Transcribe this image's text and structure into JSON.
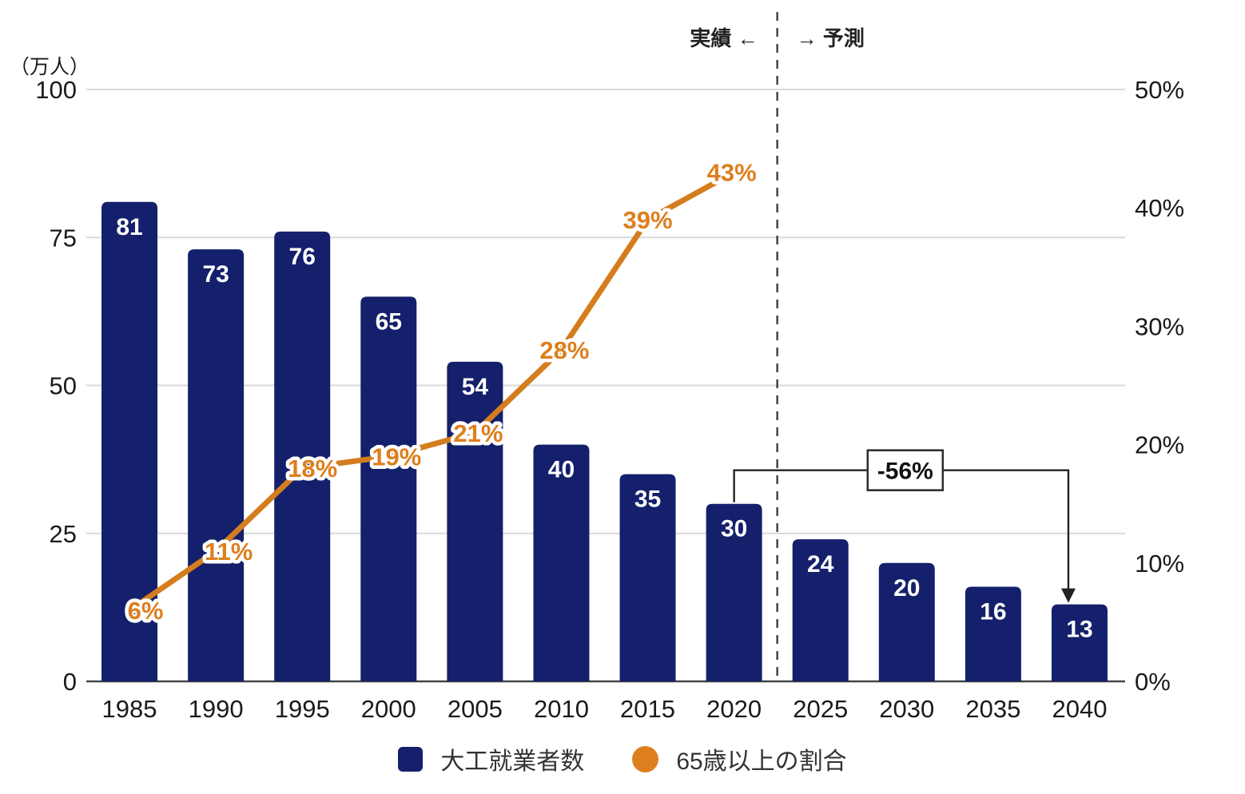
{
  "chart_data": {
    "type": "bar+line",
    "categories": [
      "1985",
      "1990",
      "1995",
      "2000",
      "2005",
      "2010",
      "2015",
      "2020",
      "2025",
      "2030",
      "2035",
      "2040"
    ],
    "series": [
      {
        "name": "大工就業者数",
        "type": "bar",
        "axis": "left",
        "color": "#14206b",
        "values": [
          81,
          73,
          76,
          65,
          54,
          40,
          35,
          30,
          24,
          20,
          16,
          13
        ]
      },
      {
        "name": "65歳以上の割合",
        "type": "line",
        "axis": "right",
        "color": "#d47d1f",
        "label_color": "#dd7f1e",
        "values": [
          6,
          11,
          18,
          19,
          21,
          28,
          39,
          43
        ],
        "point_labels": [
          "6%",
          "11%",
          "18%",
          "19%",
          "21%",
          "28%",
          "39%",
          "43%"
        ]
      }
    ],
    "left_axis": {
      "title": "（万人）",
      "tick_values": [
        0,
        25,
        50,
        75,
        100
      ],
      "tick_labels": [
        "0",
        "25",
        "50",
        "75",
        "100"
      ],
      "ylim": [
        0,
        100
      ]
    },
    "right_axis": {
      "tick_values": [
        0,
        10,
        20,
        30,
        40,
        50
      ],
      "tick_labels": [
        "0%",
        "10%",
        "20%",
        "30%",
        "40%",
        "50%"
      ],
      "ylim": [
        0,
        50
      ]
    },
    "annotations": {
      "actual_label": "実績 ←",
      "forecast_label": "→ 予測",
      "divider_after_category": "2020",
      "change_label": "-56%",
      "change_from": "2020",
      "change_to": "2040"
    },
    "legend": {
      "position": "bottom-center",
      "items": [
        {
          "swatch": "square"
        },
        {
          "swatch": "circle"
        }
      ]
    },
    "colors": {
      "grid": "#d9d9d9",
      "axis_line": "#444444",
      "divider": "#444444",
      "bracket": "#222222",
      "text": "#1a1a1a"
    },
    "grid": true
  }
}
